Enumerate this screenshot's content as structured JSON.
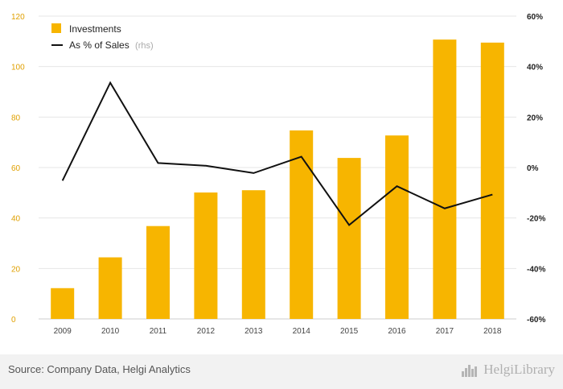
{
  "chart_data": {
    "type": "bar",
    "categories": [
      "2009",
      "2010",
      "2011",
      "2012",
      "2013",
      "2014",
      "2015",
      "2016",
      "2017",
      "2018"
    ],
    "series": [
      {
        "name": "Investments",
        "type": "bar",
        "axis": "left",
        "values": [
          12.2,
          24.4,
          36.8,
          50.1,
          51.0,
          74.7,
          63.8,
          72.7,
          110.7,
          109.5
        ]
      },
      {
        "name": "As % of Sales",
        "legend_suffix": "(rhs)",
        "type": "line",
        "axis": "right",
        "values": [
          -5.2,
          33.6,
          1.8,
          0.7,
          -2.2,
          4.3,
          -22.8,
          -7.4,
          -16.2,
          -10.7
        ]
      }
    ],
    "left_axis": {
      "ylim": [
        0,
        120
      ],
      "ticks": [
        0,
        20,
        40,
        60,
        80,
        100,
        120
      ],
      "tick_labels": [
        "0",
        "20",
        "40",
        "60",
        "80",
        "100",
        "120"
      ]
    },
    "right_axis": {
      "ylim": [
        -60,
        60
      ],
      "ticks": [
        -60,
        -40,
        -20,
        0,
        20,
        40,
        60
      ],
      "tick_labels": [
        "-60%",
        "-40%",
        "-20%",
        "0%",
        "20%",
        "40%",
        "60%"
      ]
    },
    "grid": true,
    "legend_position": "top-left",
    "colors": {
      "bar": "#f7b500",
      "line": "#111111",
      "grid": "#e6e6e6",
      "left_ticks": "#e0a000"
    }
  },
  "footer": {
    "source": "Source: Company Data, Helgi Analytics",
    "brand": "HelgiLibrary"
  }
}
